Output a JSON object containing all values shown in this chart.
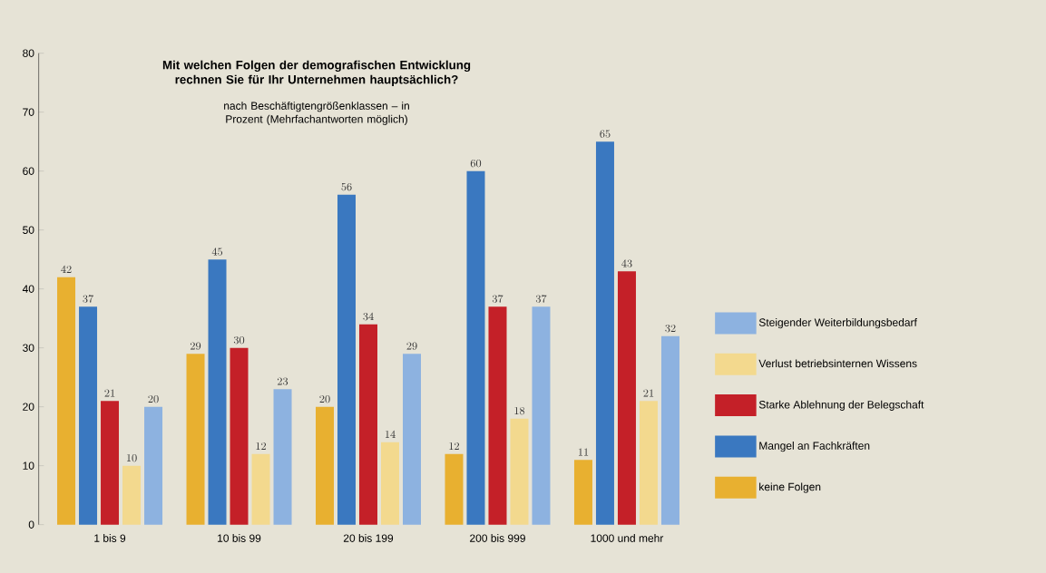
{
  "chart_data": {
    "type": "bar",
    "title": "Mit welchen Folgen der demografischen Entwicklung rechnen Sie für Ihr Unternehmen hauptsächlich?",
    "subtitle": "nach Beschäftigtengrößenklassen – in Prozent (Mehrfachantworten möglich)",
    "categories": [
      "1 bis 9",
      "10 bis 99",
      "20 bis 199",
      "200 bis 999",
      "1000 und mehr"
    ],
    "series": [
      {
        "name": "keine Folgen",
        "color": "#e8b030",
        "values": [
          42,
          29,
          20,
          12,
          11
        ]
      },
      {
        "name": "Mangel an Fachkräften",
        "color": "#3a78c0",
        "values": [
          37,
          45,
          56,
          60,
          65
        ]
      },
      {
        "name": "Starke Ablehnung der Belegschaft",
        "color": "#c42028",
        "values": [
          21,
          30,
          34,
          37,
          43
        ]
      },
      {
        "name": "Verlust betriebsinternen Wissens",
        "color": "#f3d98e",
        "values": [
          10,
          12,
          14,
          18,
          21
        ]
      },
      {
        "name": "Steigender Weiterbildungsbedarf",
        "color": "#8db2e0",
        "values": [
          20,
          23,
          29,
          37,
          32
        ]
      }
    ],
    "ylim": [
      0,
      80
    ],
    "yticks": [
      0,
      10,
      20,
      30,
      40,
      50,
      60,
      70,
      80
    ],
    "data_labels": true,
    "grid": false,
    "legend": "right"
  }
}
